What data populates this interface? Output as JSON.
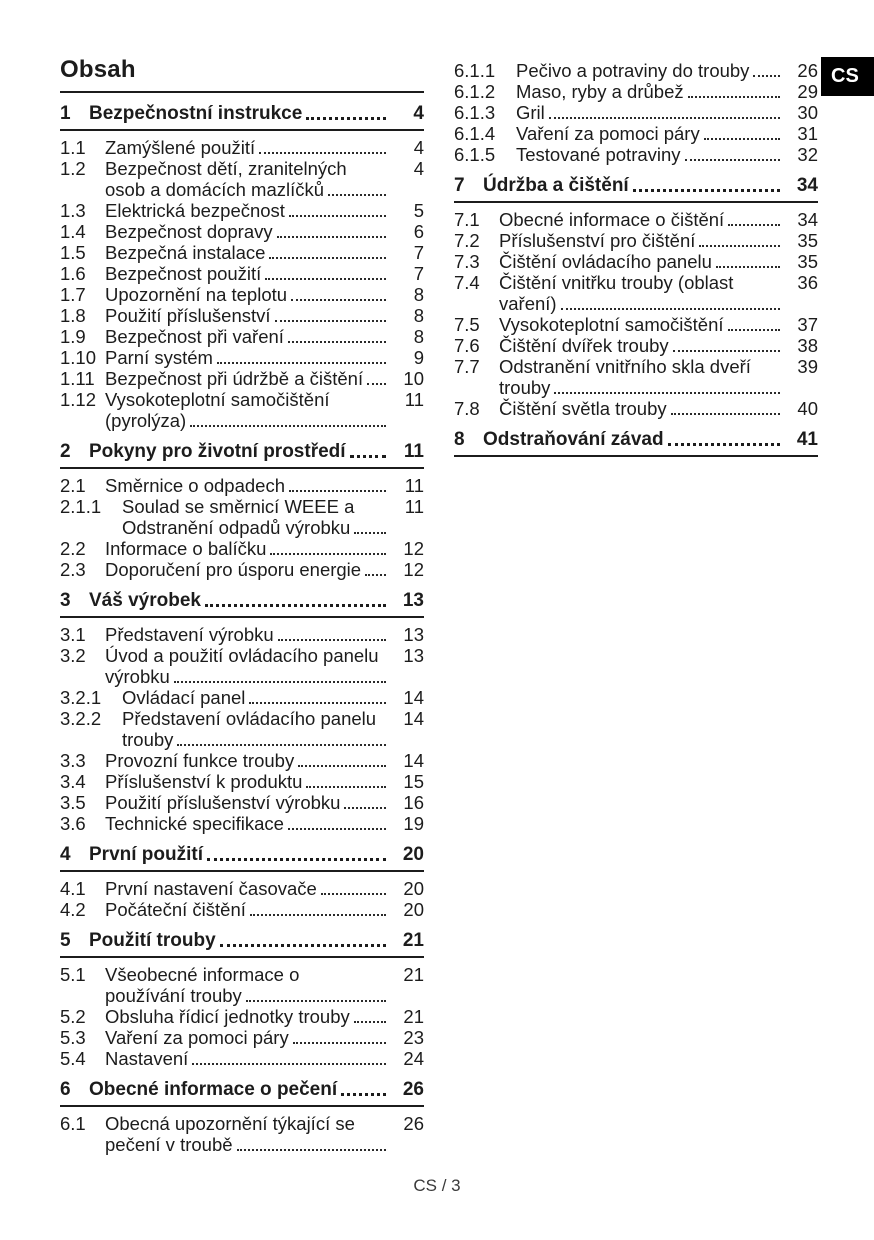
{
  "page": {
    "title": "Obsah",
    "language_badge": "CS",
    "footer_page_label": "CS / 3"
  },
  "colors": {
    "text": "#1c1c1c",
    "badge_background": "#000000",
    "badge_text": "#ffffff"
  },
  "toc": {
    "left_column": [
      {
        "level": "section",
        "num": "1",
        "lines": [
          "Bezpečnostní instrukce"
        ],
        "page": "4"
      },
      {
        "level": "entry",
        "num": "1.1",
        "lines": [
          "Zamýšlené použití"
        ],
        "page": "4"
      },
      {
        "level": "entry",
        "num": "1.2",
        "lines": [
          "Bezpečnost dětí, zranitelných",
          "osob a domácích mazlíčků"
        ],
        "page": "4"
      },
      {
        "level": "entry",
        "num": "1.3",
        "lines": [
          "Elektrická bezpečnost"
        ],
        "page": "5"
      },
      {
        "level": "entry",
        "num": "1.4",
        "lines": [
          "Bezpečnost dopravy"
        ],
        "page": "6"
      },
      {
        "level": "entry",
        "num": "1.5",
        "lines": [
          "Bezpečná instalace"
        ],
        "page": "7"
      },
      {
        "level": "entry",
        "num": "1.6",
        "lines": [
          "Bezpečnost použití"
        ],
        "page": "7"
      },
      {
        "level": "entry",
        "num": "1.7",
        "lines": [
          "Upozornění na teplotu"
        ],
        "page": "8"
      },
      {
        "level": "entry",
        "num": "1.8",
        "lines": [
          "Použití příslušenství"
        ],
        "page": "8"
      },
      {
        "level": "entry",
        "num": "1.9",
        "lines": [
          "Bezpečnost při vaření"
        ],
        "page": "8"
      },
      {
        "level": "entry",
        "num": "1.10",
        "lines": [
          "Parní systém"
        ],
        "page": "9"
      },
      {
        "level": "entry",
        "num": "1.11",
        "lines": [
          "Bezpečnost při údržbě a čištění"
        ],
        "page": "10"
      },
      {
        "level": "entry",
        "num": "1.12",
        "lines": [
          "Vysokoteplotní samočištění",
          "(pyrolýza)"
        ],
        "page": "11"
      },
      {
        "level": "section",
        "num": "2",
        "lines": [
          "Pokyny pro životní prostředí"
        ],
        "page": "11"
      },
      {
        "level": "entry",
        "num": "2.1",
        "lines": [
          "Směrnice o odpadech"
        ],
        "page": "11"
      },
      {
        "level": "deep",
        "num": "2.1.1",
        "lines": [
          "Soulad se směrnicí WEEE a",
          "Odstranění odpadů výrobku"
        ],
        "page": "11"
      },
      {
        "level": "entry",
        "num": "2.2",
        "lines": [
          "Informace o balíčku"
        ],
        "page": "12"
      },
      {
        "level": "entry",
        "num": "2.3",
        "lines": [
          "Doporučení pro úsporu energie"
        ],
        "page": "12"
      },
      {
        "level": "section",
        "num": "3",
        "lines": [
          "Váš výrobek"
        ],
        "page": "13"
      },
      {
        "level": "entry",
        "num": "3.1",
        "lines": [
          "Představení výrobku"
        ],
        "page": "13"
      },
      {
        "level": "entry",
        "num": "3.2",
        "lines": [
          "Úvod a použití ovládacího panelu",
          "výrobku"
        ],
        "page": "13"
      },
      {
        "level": "deep",
        "num": "3.2.1",
        "lines": [
          "Ovládací panel"
        ],
        "page": "14"
      },
      {
        "level": "deep",
        "num": "3.2.2",
        "lines": [
          "Představení ovládacího panelu",
          "trouby"
        ],
        "page": "14"
      },
      {
        "level": "entry",
        "num": "3.3",
        "lines": [
          "Provozní funkce trouby"
        ],
        "page": "14"
      },
      {
        "level": "entry",
        "num": "3.4",
        "lines": [
          "Příslušenství k produktu"
        ],
        "page": "15"
      },
      {
        "level": "entry",
        "num": "3.5",
        "lines": [
          "Použití příslušenství výrobku"
        ],
        "page": "16"
      },
      {
        "level": "entry",
        "num": "3.6",
        "lines": [
          "Technické specifikace"
        ],
        "page": "19"
      },
      {
        "level": "section",
        "num": "4",
        "lines": [
          "První použití"
        ],
        "page": "20"
      },
      {
        "level": "entry",
        "num": "4.1",
        "lines": [
          "První nastavení časovače"
        ],
        "page": "20"
      },
      {
        "level": "entry",
        "num": "4.2",
        "lines": [
          "Počáteční čištění"
        ],
        "page": "20"
      },
      {
        "level": "section",
        "num": "5",
        "lines": [
          "Použití trouby"
        ],
        "page": "21"
      },
      {
        "level": "entry",
        "num": "5.1",
        "lines": [
          "Všeobecné informace o",
          "používání trouby"
        ],
        "page": "21"
      },
      {
        "level": "entry",
        "num": "5.2",
        "lines": [
          "Obsluha řídicí jednotky trouby"
        ],
        "page": "21"
      },
      {
        "level": "entry",
        "num": "5.3",
        "lines": [
          "Vaření za pomoci páry"
        ],
        "page": "23"
      },
      {
        "level": "entry",
        "num": "5.4",
        "lines": [
          "Nastavení"
        ],
        "page": "24"
      },
      {
        "level": "section",
        "num": "6",
        "lines": [
          "Obecné informace o pečení"
        ],
        "page": "26"
      },
      {
        "level": "entry",
        "num": "6.1",
        "lines": [
          "Obecná upozornění týkající se",
          "pečení v troubě"
        ],
        "page": "26"
      }
    ],
    "right_column": [
      {
        "level": "deep",
        "num": "6.1.1",
        "lines": [
          "Pečivo a potraviny do trouby"
        ],
        "page": "26"
      },
      {
        "level": "deep",
        "num": "6.1.2",
        "lines": [
          "Maso, ryby a drůbež"
        ],
        "page": "29"
      },
      {
        "level": "deep",
        "num": "6.1.3",
        "lines": [
          "Gril"
        ],
        "page": "30"
      },
      {
        "level": "deep",
        "num": "6.1.4",
        "lines": [
          "Vaření za pomoci páry"
        ],
        "page": "31"
      },
      {
        "level": "deep",
        "num": "6.1.5",
        "lines": [
          "Testované potraviny"
        ],
        "page": "32"
      },
      {
        "level": "section",
        "num": "7",
        "lines": [
          "Údržba a čištění"
        ],
        "page": "34"
      },
      {
        "level": "entry",
        "num": "7.1",
        "lines": [
          "Obecné informace o čištění"
        ],
        "page": "34"
      },
      {
        "level": "entry",
        "num": "7.2",
        "lines": [
          "Příslušenství pro čištění"
        ],
        "page": "35"
      },
      {
        "level": "entry",
        "num": "7.3",
        "lines": [
          "Čištění ovládacího panelu"
        ],
        "page": "35"
      },
      {
        "level": "entry",
        "num": "7.4",
        "lines": [
          "Čištění vnitřku trouby (oblast",
          "vaření)"
        ],
        "page": "36"
      },
      {
        "level": "entry",
        "num": "7.5",
        "lines": [
          "Vysokoteplotní samočištění"
        ],
        "page": "37"
      },
      {
        "level": "entry",
        "num": "7.6",
        "lines": [
          "Čištění dvířek trouby"
        ],
        "page": "38"
      },
      {
        "level": "entry",
        "num": "7.7",
        "lines": [
          "Odstranění vnitřního skla dveří",
          "trouby"
        ],
        "page": "39"
      },
      {
        "level": "entry",
        "num": "7.8",
        "lines": [
          "Čištění světla trouby"
        ],
        "page": "40"
      },
      {
        "level": "section",
        "num": "8",
        "lines": [
          "Odstraňování závad"
        ],
        "page": "41"
      }
    ]
  }
}
